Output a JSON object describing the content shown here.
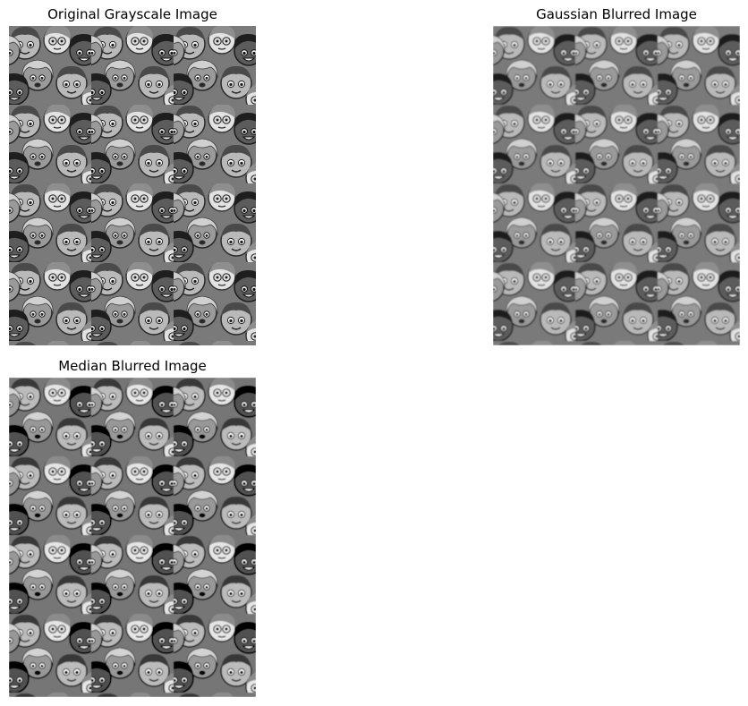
{
  "figure": {
    "panels": [
      {
        "id": "original",
        "title": "Original Grayscale Image",
        "blur": "none"
      },
      {
        "id": "gaussian",
        "title": "Gaussian Blurred Image",
        "blur": "gaussian"
      },
      {
        "id": "median",
        "title": "Median Blurred Image",
        "blur": "median"
      }
    ]
  },
  "colors": {
    "background": "#ffffff",
    "text": "#000000"
  }
}
